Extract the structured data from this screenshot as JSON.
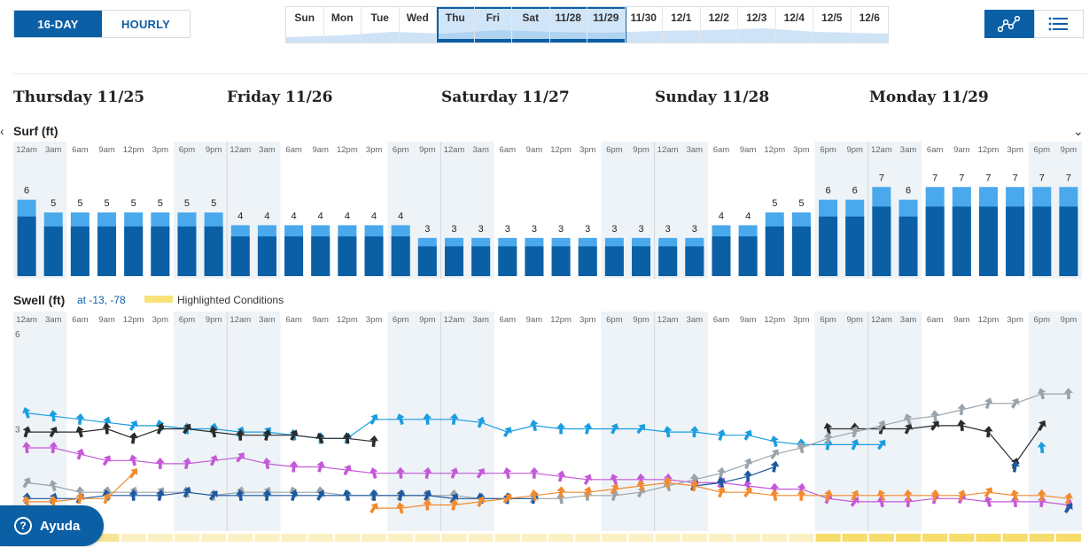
{
  "view_toggle": {
    "day_label": "16-DAY",
    "hourly_label": "HOURLY",
    "active": "16-DAY"
  },
  "day_strip": {
    "days": [
      "Sun",
      "Mon",
      "Tue",
      "Wed",
      "Thu",
      "Fri",
      "Sat",
      "11/28",
      "11/29",
      "11/30",
      "12/1",
      "12/2",
      "12/3",
      "12/4",
      "12/5",
      "12/6"
    ],
    "selected_range": [
      "Thu",
      "11/29"
    ]
  },
  "view_icons": [
    {
      "icon": "graph-icon",
      "active": true
    },
    {
      "icon": "list-icon",
      "active": false
    }
  ],
  "days": [
    "Thursday 11/25",
    "Friday 11/26",
    "Saturday 11/27",
    "Sunday 11/28",
    "Monday 11/29"
  ],
  "hour_labels": [
    "12am",
    "3am",
    "6am",
    "9am",
    "12pm",
    "3pm",
    "6pm",
    "9pm"
  ],
  "surf": {
    "title": "Surf (ft)",
    "values": [
      6,
      5,
      5,
      5,
      5,
      5,
      5,
      5,
      4,
      4,
      4,
      4,
      4,
      4,
      4,
      3,
      3,
      3,
      3,
      3,
      3,
      3,
      3,
      3,
      3,
      3,
      4,
      4,
      5,
      5,
      6,
      6,
      7,
      6,
      7,
      7,
      7,
      7,
      7,
      7
    ],
    "colors": {
      "max": "#4aa8ec",
      "min": "#0b5fa5"
    }
  },
  "swell": {
    "title": "Swell (ft)",
    "location": "at -13, -78",
    "highlight_label": "Highlighted Conditions",
    "y_ticks": [
      "6",
      "3"
    ]
  },
  "highlight_levels": [
    0.6,
    0.6,
    0.6,
    0.6,
    0.3,
    0.3,
    0.3,
    0.3,
    0.3,
    0.3,
    0.3,
    0.3,
    0.3,
    0.3,
    0.3,
    0.3,
    0.3,
    0.3,
    0.3,
    0.3,
    0.3,
    0.3,
    0.3,
    0.3,
    0.3,
    0.3,
    0.3,
    0.3,
    0.3,
    0.3,
    1,
    1,
    1,
    1,
    1,
    1,
    1,
    1,
    1,
    1
  ],
  "help_button": {
    "label": "Ayuda",
    "icon": "help-icon"
  },
  "chart_data": {
    "type": "line",
    "x": [
      "Thu 12am",
      "Thu 3am",
      "Thu 6am",
      "Thu 9am",
      "Thu 12pm",
      "Thu 3pm",
      "Thu 6pm",
      "Thu 9pm",
      "Fri 12am",
      "Fri 3am",
      "Fri 6am",
      "Fri 9am",
      "Fri 12pm",
      "Fri 3pm",
      "Fri 6pm",
      "Fri 9pm",
      "Sat 12am",
      "Sat 3am",
      "Sat 6am",
      "Sat 9am",
      "Sat 12pm",
      "Sat 3pm",
      "Sat 6pm",
      "Sat 9pm",
      "Sun 12am",
      "Sun 3am",
      "Sun 6am",
      "Sun 9am",
      "Sun 12pm",
      "Sun 3pm",
      "Sun 6pm",
      "Sun 9pm",
      "Mon 12am",
      "Mon 3am",
      "Mon 6am",
      "Mon 9am",
      "Mon 12pm",
      "Mon 3pm",
      "Mon 6pm",
      "Mon 9pm"
    ],
    "ylim": [
      0,
      6.5
    ],
    "series": [
      {
        "color": "#1a9de0",
        "values": [
          3.5,
          3.4,
          3.3,
          3.2,
          3.1,
          3.1,
          3.0,
          3.0,
          2.9,
          2.9,
          2.8,
          2.7,
          2.7,
          3.3,
          3.3,
          3.3,
          3.3,
          3.2,
          2.9,
          3.1,
          3.0,
          3.0,
          3.0,
          3.0,
          2.9,
          2.9,
          2.8,
          2.8,
          2.6,
          2.5,
          2.5,
          2.5,
          2.5,
          null,
          null,
          null,
          null,
          null,
          2.4,
          null
        ]
      },
      {
        "color": "#2b2b2b",
        "values": [
          2.9,
          2.9,
          2.9,
          3.0,
          2.7,
          3.0,
          3.0,
          2.9,
          2.8,
          2.8,
          2.8,
          2.7,
          2.7,
          2.6,
          null,
          null,
          null,
          null,
          null,
          null,
          null,
          null,
          null,
          null,
          null,
          null,
          null,
          null,
          null,
          null,
          3.0,
          3.0,
          3.0,
          3.0,
          3.1,
          3.1,
          2.9,
          1.9,
          3.1,
          null
        ]
      },
      {
        "color": "#c458d8",
        "values": [
          2.4,
          2.4,
          2.2,
          2.0,
          2.0,
          1.9,
          1.9,
          2.0,
          2.1,
          1.9,
          1.8,
          1.8,
          1.7,
          1.6,
          1.6,
          1.6,
          1.6,
          1.6,
          1.6,
          1.6,
          1.5,
          1.4,
          1.4,
          1.4,
          1.4,
          1.3,
          1.3,
          1.2,
          1.1,
          1.1,
          0.8,
          0.7,
          0.7,
          0.7,
          0.8,
          0.8,
          0.7,
          0.7,
          0.7,
          0.6
        ]
      },
      {
        "color": "#9aa3ab",
        "values": [
          1.3,
          1.2,
          1.0,
          1.0,
          1.0,
          1.0,
          1.0,
          0.9,
          1.0,
          1.0,
          1.0,
          1.0,
          0.9,
          0.9,
          0.9,
          0.9,
          0.9,
          0.8,
          0.8,
          0.8,
          0.8,
          0.9,
          0.9,
          1.0,
          1.2,
          1.4,
          1.6,
          1.9,
          2.2,
          2.4,
          2.7,
          2.9,
          3.1,
          3.3,
          3.4,
          3.6,
          3.8,
          3.8,
          4.1,
          4.1
        ]
      },
      {
        "color": "#1c5aa0",
        "values": [
          0.8,
          0.8,
          0.8,
          0.9,
          0.9,
          0.9,
          1.0,
          0.9,
          0.9,
          0.9,
          0.9,
          0.9,
          0.9,
          0.9,
          0.9,
          0.9,
          0.8,
          0.8,
          0.8,
          0.8,
          null,
          null,
          null,
          null,
          null,
          1.2,
          1.3,
          1.5,
          1.8,
          null,
          null,
          null,
          null,
          null,
          null,
          null,
          null,
          1.8,
          null,
          0.5
        ]
      },
      {
        "color": "#f28a2e",
        "values": [
          0.7,
          0.7,
          0.8,
          0.8,
          1.6,
          null,
          null,
          null,
          null,
          null,
          null,
          null,
          null,
          0.5,
          0.5,
          0.6,
          0.6,
          0.7,
          0.8,
          0.9,
          1.0,
          1.0,
          1.1,
          1.2,
          1.3,
          1.2,
          1.0,
          1.0,
          0.9,
          0.9,
          0.9,
          0.9,
          0.9,
          0.9,
          0.9,
          0.9,
          1.0,
          0.9,
          0.9,
          0.8
        ]
      }
    ]
  }
}
